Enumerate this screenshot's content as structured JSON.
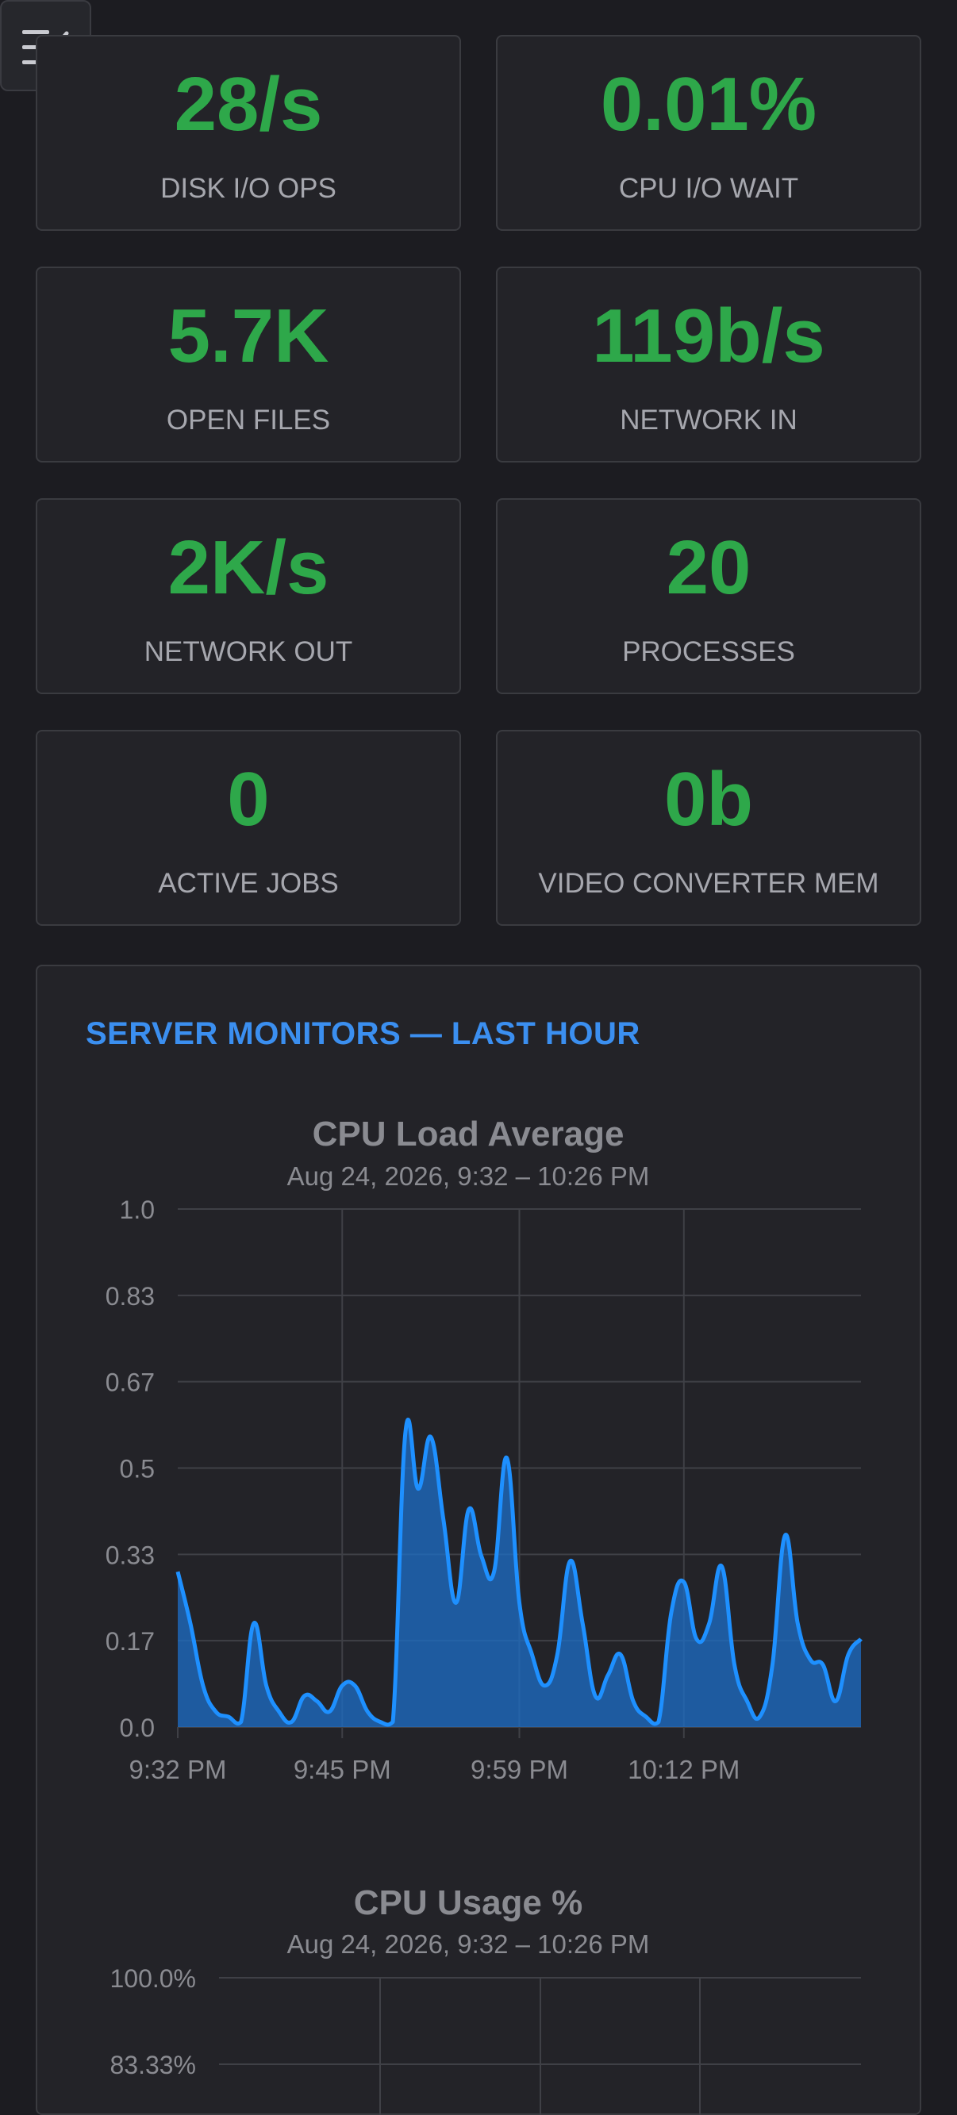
{
  "menu_button": {
    "icon": "menu-collapse-icon"
  },
  "stats": [
    {
      "value": "28/s",
      "label": "DISK I/O OPS"
    },
    {
      "value": "0.01%",
      "label": "CPU I/O WAIT"
    },
    {
      "value": "5.7K",
      "label": "OPEN FILES"
    },
    {
      "value": "119b/s",
      "label": "NETWORK IN"
    },
    {
      "value": "2K/s",
      "label": "NETWORK OUT"
    },
    {
      "value": "20",
      "label": "PROCESSES"
    },
    {
      "value": "0",
      "label": "ACTIVE JOBS"
    },
    {
      "value": "0b",
      "label": "VIDEO CONVERTER MEM"
    }
  ],
  "monitors": {
    "title": "SERVER MONITORS — LAST HOUR"
  },
  "colors": {
    "value_green": "#2ea84a",
    "accent_blue": "#3b8ff0",
    "series_blue": "#1e90ff"
  },
  "chart_data": [
    {
      "type": "area",
      "title": "CPU Load Average",
      "subtitle": "Aug 24, 2026, 9:32 – 10:26 PM",
      "x_tick_labels": [
        "9:32 PM",
        "9:45 PM",
        "9:59 PM",
        "10:12 PM"
      ],
      "y_tick_labels": [
        "1.0",
        "0.83",
        "0.67",
        "0.5",
        "0.33",
        "0.17",
        "0.0"
      ],
      "ylim": [
        0,
        1
      ],
      "x_minutes_range": [
        0,
        54
      ],
      "grid": true,
      "x_minutes": [
        0,
        1,
        2,
        3,
        4,
        5,
        6,
        7,
        8,
        9,
        10,
        11,
        12,
        13,
        14,
        15,
        16,
        17,
        18,
        19,
        20,
        21,
        22,
        23,
        24,
        25,
        26,
        27,
        28,
        29,
        30,
        31,
        32,
        33,
        34,
        35,
        36,
        37,
        38,
        39,
        40,
        41,
        42,
        43,
        44,
        45,
        46,
        47,
        48,
        49,
        50,
        51,
        52,
        53,
        54
      ],
      "values": [
        0.3,
        0.2,
        0.08,
        0.03,
        0.02,
        0.01,
        0.2,
        0.08,
        0.03,
        0.01,
        0.06,
        0.05,
        0.03,
        0.08,
        0.08,
        0.03,
        0.01,
        0.01,
        0.57,
        0.46,
        0.56,
        0.4,
        0.24,
        0.42,
        0.33,
        0.3,
        0.52,
        0.24,
        0.14,
        0.08,
        0.14,
        0.32,
        0.2,
        0.06,
        0.1,
        0.14,
        0.05,
        0.02,
        0.01,
        0.22,
        0.28,
        0.17,
        0.2,
        0.31,
        0.12,
        0.05,
        0.02,
        0.12,
        0.37,
        0.2,
        0.13,
        0.12,
        0.05,
        0.14,
        0.17
      ]
    },
    {
      "type": "line",
      "title": "CPU Usage %",
      "subtitle": "Aug 24, 2026, 9:32 – 10:26 PM",
      "y_tick_labels": [
        "100.0%",
        "83.33%"
      ],
      "ylim": [
        0,
        100
      ],
      "grid": true
    }
  ]
}
